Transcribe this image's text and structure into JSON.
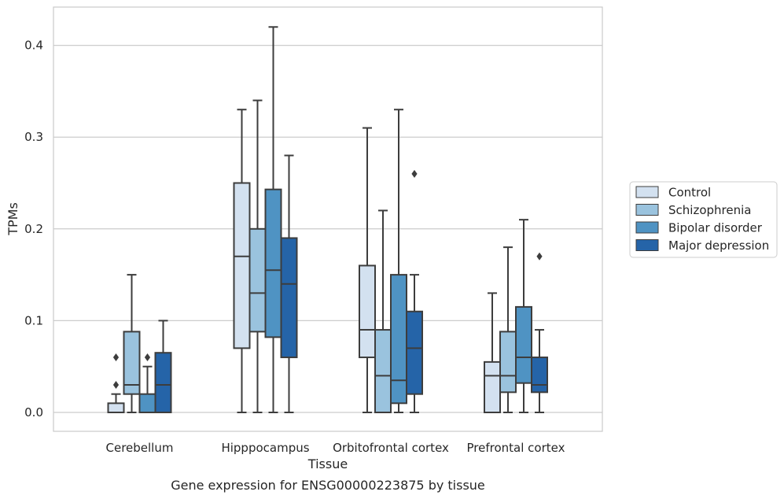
{
  "chart_data": {
    "type": "box",
    "xlabel": "Tissue",
    "ylabel": "TPMs",
    "caption": "Gene expression for ENSG00000223875 by tissue",
    "ylim": [
      -0.02,
      0.44
    ],
    "yticks": [
      "0.0",
      "0.1",
      "0.2",
      "0.3",
      "0.4"
    ],
    "ytick_values": [
      0.0,
      0.1,
      0.2,
      0.3,
      0.4
    ],
    "grid": true,
    "legend_position": "right",
    "categories": [
      "Cerebellum",
      "Hipppocampus",
      "Orbitofrontal cortex",
      "Prefrontal cortex"
    ],
    "series": [
      {
        "name": "Control",
        "color": "#d3e1f0",
        "boxes": [
          {
            "whislo": 0.0,
            "q1": 0.0,
            "med": 0.0,
            "q3": 0.01,
            "whishi": 0.02,
            "fliers": [
              0.03,
              0.06
            ]
          },
          {
            "whislo": 0.0,
            "q1": 0.07,
            "med": 0.17,
            "q3": 0.25,
            "whishi": 0.33,
            "fliers": []
          },
          {
            "whislo": 0.0,
            "q1": 0.06,
            "med": 0.09,
            "q3": 0.16,
            "whishi": 0.31,
            "fliers": []
          },
          {
            "whislo": 0.0,
            "q1": 0.0,
            "med": 0.04,
            "q3": 0.055,
            "whishi": 0.13,
            "fliers": []
          }
        ]
      },
      {
        "name": "Schizophrenia",
        "color": "#9ac3de",
        "boxes": [
          {
            "whislo": 0.0,
            "q1": 0.02,
            "med": 0.03,
            "q3": 0.088,
            "whishi": 0.15,
            "fliers": []
          },
          {
            "whislo": 0.0,
            "q1": 0.088,
            "med": 0.13,
            "q3": 0.2,
            "whishi": 0.34,
            "fliers": []
          },
          {
            "whislo": 0.0,
            "q1": 0.0,
            "med": 0.04,
            "q3": 0.09,
            "whishi": 0.22,
            "fliers": []
          },
          {
            "whislo": 0.0,
            "q1": 0.022,
            "med": 0.04,
            "q3": 0.088,
            "whishi": 0.18,
            "fliers": []
          }
        ]
      },
      {
        "name": "Bipolar disorder",
        "color": "#4f93c3",
        "boxes": [
          {
            "whislo": 0.0,
            "q1": 0.0,
            "med": 0.0,
            "q3": 0.02,
            "whishi": 0.05,
            "fliers": [
              0.06
            ]
          },
          {
            "whislo": 0.0,
            "q1": 0.082,
            "med": 0.155,
            "q3": 0.243,
            "whishi": 0.42,
            "fliers": []
          },
          {
            "whislo": 0.0,
            "q1": 0.01,
            "med": 0.035,
            "q3": 0.15,
            "whishi": 0.33,
            "fliers": []
          },
          {
            "whislo": 0.0,
            "q1": 0.032,
            "med": 0.06,
            "q3": 0.115,
            "whishi": 0.21,
            "fliers": []
          }
        ]
      },
      {
        "name": "Major depression",
        "color": "#2564a8",
        "boxes": [
          {
            "whislo": 0.0,
            "q1": 0.0,
            "med": 0.03,
            "q3": 0.065,
            "whishi": 0.1,
            "fliers": []
          },
          {
            "whislo": 0.0,
            "q1": 0.06,
            "med": 0.14,
            "q3": 0.19,
            "whishi": 0.28,
            "fliers": []
          },
          {
            "whislo": 0.0,
            "q1": 0.02,
            "med": 0.07,
            "q3": 0.11,
            "whishi": 0.15,
            "fliers": [
              0.26
            ]
          },
          {
            "whislo": 0.0,
            "q1": 0.022,
            "med": 0.03,
            "q3": 0.06,
            "whishi": 0.09,
            "fliers": [
              0.17
            ]
          }
        ]
      }
    ]
  }
}
